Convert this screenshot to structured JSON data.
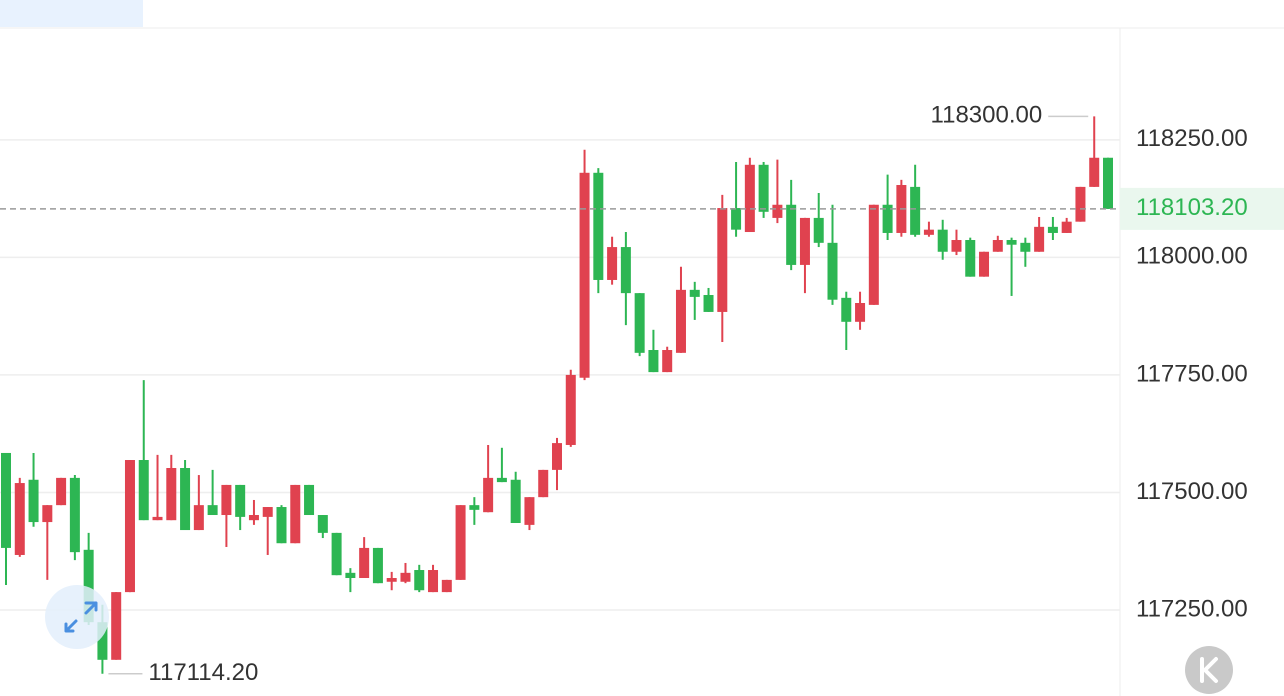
{
  "chart_data": {
    "type": "candlestick",
    "up_color": "#e0424f",
    "down_color": "#2db653",
    "ylim": [
      117067,
      118488
    ],
    "yticks": [
      {
        "value": 117250,
        "label": "117250.00"
      },
      {
        "value": 117500,
        "label": "117500.00"
      },
      {
        "value": 117750,
        "label": "117750.00"
      },
      {
        "value": 118000,
        "label": "118000.00"
      },
      {
        "value": 118250,
        "label": "118250.00"
      }
    ],
    "grid": true,
    "last_price": {
      "value": 118103.2,
      "label": "118103.20"
    },
    "annotations": [
      {
        "value": 118300,
        "label": "118300.00"
      },
      {
        "value": 117114.2,
        "label": "117114.20"
      }
    ],
    "open": [
      117584,
      117367,
      117527,
      117437,
      117473,
      117531,
      117378,
      117224,
      117144,
      117288,
      117569,
      117441,
      117441,
      117552,
      117420,
      117473,
      117452,
      117516,
      117441,
      117448,
      117469,
      117392,
      117516,
      117452,
      117414,
      117329,
      117318,
      117382,
      117310,
      117310,
      117335,
      117288,
      117288,
      117314,
      117473,
      117458,
      117531,
      117527,
      117431,
      117490,
      117548,
      117601,
      117744,
      118180,
      117952,
      118022,
      117924,
      117803,
      117756,
      117797,
      117931,
      117920,
      117884,
      118105,
      118054,
      118197,
      118084,
      118112,
      117984,
      118084,
      118031,
      117914,
      117863,
      117899,
      118112,
      118052,
      118150,
      118048,
      118059,
      118012,
      118037,
      117959,
      118012,
      118037,
      118031,
      118012,
      118065,
      118052,
      118076,
      118150,
      118212
    ],
    "high": [
      117584,
      117531,
      117584,
      117473,
      117531,
      117537,
      117414,
      117261,
      117288,
      117569,
      117739,
      117580,
      117580,
      117569,
      117537,
      117548,
      117516,
      117516,
      117484,
      117469,
      117473,
      117516,
      117516,
      117452,
      117414,
      117339,
      117405,
      117382,
      117331,
      117350,
      117346,
      117346,
      117314,
      117473,
      117490,
      117601,
      117595,
      117544,
      117490,
      117548,
      117616,
      117761,
      118229,
      118190,
      118044,
      118054,
      117924,
      117846,
      117810,
      117980,
      117948,
      117935,
      118133,
      118203,
      118212,
      118203,
      118208,
      118165,
      118084,
      118137,
      118112,
      117927,
      117927,
      118112,
      118176,
      118165,
      118197,
      118076,
      118080,
      118059,
      118042,
      118012,
      118046,
      118042,
      118042,
      118086,
      118086,
      118084,
      118150,
      118300,
      118212
    ],
    "low": [
      117303,
      117363,
      117427,
      117314,
      117473,
      117356,
      117218,
      117114.2,
      117144,
      117288,
      117441,
      117441,
      117441,
      117420,
      117420,
      117452,
      117384,
      117420,
      117431,
      117367,
      117392,
      117392,
      117452,
      117403,
      117324,
      117288,
      117318,
      117307,
      117292,
      117307,
      117288,
      117288,
      117288,
      117314,
      117431,
      117458,
      117522,
      117435,
      117420,
      117490,
      117505,
      117597,
      117739,
      117924,
      117942,
      117856,
      117790,
      117756,
      117756,
      117797,
      117867,
      117884,
      117820,
      118044,
      118054,
      118084,
      118073,
      117973,
      117924,
      118022,
      117899,
      117803,
      117846,
      117899,
      118037,
      118044,
      118044,
      118044,
      117995,
      118005,
      117959,
      117959,
      118012,
      117918,
      117980,
      118012,
      118037,
      118052,
      118076,
      118150,
      118103.2
    ],
    "close": [
      117382,
      117520,
      117437,
      117473,
      117531,
      117373,
      117224,
      117144,
      117288,
      117569,
      117441,
      117448,
      117552,
      117420,
      117473,
      117452,
      117516,
      117448,
      117452,
      117469,
      117392,
      117516,
      117452,
      117414,
      117324,
      117318,
      117382,
      117307,
      117318,
      117329,
      117292,
      117335,
      117314,
      117473,
      117463,
      117531,
      117522,
      117435,
      117490,
      117548,
      117605,
      117750,
      118180,
      117952,
      118022,
      117924,
      117797,
      117756,
      117803,
      117931,
      117916,
      117884,
      118105,
      118059,
      118197,
      118097,
      118112,
      117984,
      118084,
      118031,
      117910,
      117863,
      117903,
      118112,
      118052,
      118154,
      118048,
      118059,
      118012,
      118037,
      117959,
      118012,
      118037,
      118027,
      118012,
      118065,
      118052,
      118076,
      118150,
      118212,
      118103.2
    ]
  }
}
